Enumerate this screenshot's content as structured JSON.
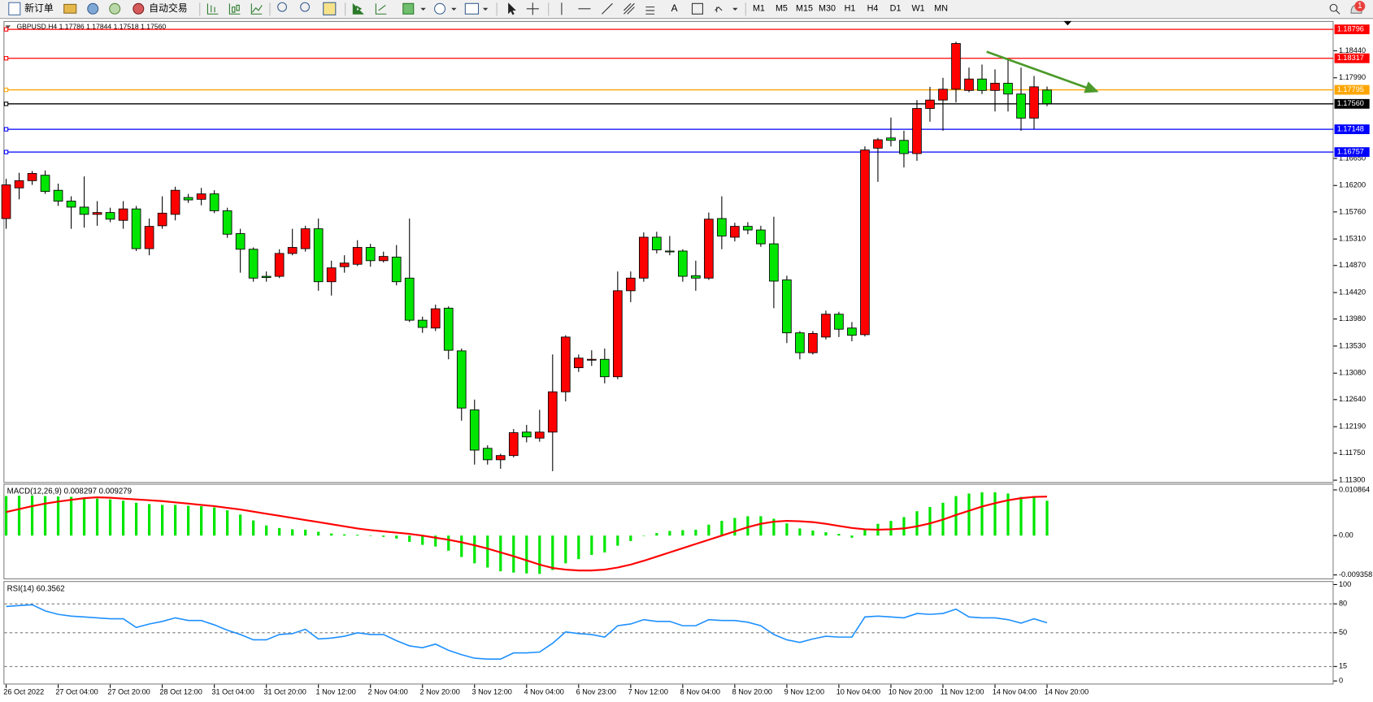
{
  "toolbar": {
    "new_order": "新订单",
    "auto_trading": "自动交易",
    "text_tool": "A",
    "timeframes": [
      "M1",
      "M5",
      "M15",
      "M30",
      "H1",
      "H4",
      "D1",
      "W1",
      "MN"
    ],
    "notifications": 1
  },
  "chart_data": [
    {
      "type": "candlestick",
      "title": "GBPUSD,H4  1.17786 1.17844 1.17518 1.17560",
      "categories": [
        "26 Oct 2022",
        null,
        null,
        null,
        "27 Oct 04:00",
        null,
        null,
        null,
        "27 Oct 20:00",
        null,
        null,
        null,
        "28 Oct 12:00",
        null,
        null,
        null,
        "31 Oct 04:00",
        null,
        null,
        null,
        "31 Oct 20:00",
        null,
        null,
        null,
        "1 Nov 12:00",
        null,
        null,
        null,
        "2 Nov 04:00",
        null,
        null,
        null,
        "2 Nov 20:00",
        null,
        null,
        null,
        "3 Nov 12:00",
        null,
        null,
        null,
        "4 Nov 04:00",
        null,
        null,
        null,
        "6 Nov 23:00",
        null,
        null,
        null,
        "7 Nov 12:00",
        null,
        null,
        null,
        "8 Nov 04:00",
        null,
        null,
        null,
        "8 Nov 20:00",
        null,
        null,
        null,
        "9 Nov 12:00",
        null,
        null,
        null,
        "10 Nov 04:00",
        null,
        null,
        null,
        "10 Nov 20:00",
        null,
        null,
        null,
        "11 Nov 12:00",
        null,
        null,
        null,
        "14 Nov 04:00",
        null,
        null,
        null,
        "14 Nov 20:00"
      ],
      "open": [
        1.1565,
        1.1616,
        1.1628,
        1.1637,
        1.1612,
        1.1594,
        1.1584,
        1.1572,
        1.1575,
        1.1562,
        1.1581,
        1.1515,
        1.1553,
        1.1572,
        1.16,
        1.1597,
        1.1606,
        1.1578,
        1.154,
        1.1514,
        1.1469,
        1.1469,
        1.1507,
        1.1515,
        1.1548,
        1.146,
        1.1485,
        1.1489,
        1.1517,
        1.1495,
        1.1501,
        1.1466,
        1.1396,
        1.1383,
        1.1416,
        1.1345,
        1.1247,
        1.1183,
        1.1164,
        1.1171,
        1.121,
        1.12,
        1.121,
        1.1277,
        1.1317,
        1.133,
        1.1331,
        1.1302,
        1.1445,
        1.1466,
        1.1534,
        1.1511,
        1.1511,
        1.147,
        1.1466,
        1.1565,
        1.1534,
        1.1552,
        1.1546,
        1.1523,
        1.1463,
        1.1375,
        1.1342,
        1.1368,
        1.1406,
        1.1383,
        1.1372,
        1.1682,
        1.1699,
        1.1695,
        1.1673,
        1.1748,
        1.1762,
        1.178,
        1.1778,
        1.1797,
        1.1778,
        1.179,
        1.1772,
        1.1732,
        1.17786
      ],
      "high": [
        1.1631,
        1.1641,
        1.1644,
        1.1645,
        1.1623,
        1.1602,
        1.1635,
        1.1594,
        1.1583,
        1.1594,
        1.1586,
        1.1565,
        1.1602,
        1.1618,
        1.1606,
        1.1616,
        1.1612,
        1.1583,
        1.1548,
        1.1517,
        1.1477,
        1.1514,
        1.1548,
        1.1553,
        1.1565,
        1.1495,
        1.1504,
        1.1529,
        1.1523,
        1.151,
        1.1521,
        1.1565,
        1.1402,
        1.1422,
        1.1419,
        1.1349,
        1.1264,
        1.1188,
        1.1174,
        1.1215,
        1.1222,
        1.1247,
        1.1339,
        1.1371,
        1.1339,
        1.1346,
        1.1349,
        1.1477,
        1.1477,
        1.1542,
        1.1543,
        1.1536,
        1.1514,
        1.1495,
        1.1575,
        1.1602,
        1.1558,
        1.1559,
        1.1553,
        1.1568,
        1.147,
        1.1378,
        1.1378,
        1.1412,
        1.141,
        1.1393,
        1.1685,
        1.1699,
        1.1733,
        1.1711,
        1.1762,
        1.1784,
        1.1799,
        1.1859,
        1.1816,
        1.1821,
        1.1813,
        1.1831,
        1.1816,
        1.1802,
        1.17844
      ],
      "low": [
        1.1548,
        1.1597,
        1.1621,
        1.1606,
        1.1586,
        1.1548,
        1.155,
        1.1553,
        1.1559,
        1.1548,
        1.1511,
        1.1504,
        1.1548,
        1.1562,
        1.1591,
        1.1587,
        1.1574,
        1.1533,
        1.1475,
        1.146,
        1.146,
        1.1466,
        1.1504,
        1.151,
        1.1445,
        1.1437,
        1.1475,
        1.1486,
        1.1485,
        1.1492,
        1.1454,
        1.1393,
        1.1375,
        1.1378,
        1.1331,
        1.1229,
        1.1156,
        1.1156,
        1.1149,
        1.1168,
        1.1193,
        1.1194,
        1.1145,
        1.1261,
        1.131,
        1.132,
        1.1291,
        1.1298,
        1.1426,
        1.146,
        1.1507,
        1.1504,
        1.146,
        1.1445,
        1.1463,
        1.1514,
        1.1527,
        1.1539,
        1.1518,
        1.1416,
        1.1358,
        1.1331,
        1.1339,
        1.1364,
        1.1368,
        1.1361,
        1.1369,
        1.1626,
        1.1685,
        1.165,
        1.1661,
        1.1726,
        1.1711,
        1.1758,
        1.1775,
        1.1772,
        1.1743,
        1.1743,
        1.1711,
        1.1714,
        1.17518
      ],
      "close": [
        1.1621,
        1.1628,
        1.164,
        1.161,
        1.1594,
        1.1584,
        1.1572,
        1.1575,
        1.1564,
        1.1581,
        1.1515,
        1.1552,
        1.1574,
        1.1612,
        1.1596,
        1.1606,
        1.1578,
        1.1539,
        1.1514,
        1.1466,
        1.1467,
        1.1507,
        1.1517,
        1.1548,
        1.146,
        1.1483,
        1.1491,
        1.1517,
        1.1495,
        1.1502,
        1.146,
        1.1396,
        1.1384,
        1.1415,
        1.1346,
        1.125,
        1.118,
        1.1164,
        1.1171,
        1.1209,
        1.1202,
        1.121,
        1.1277,
        1.1368,
        1.1333,
        1.1331,
        1.1302,
        1.1445,
        1.1466,
        1.1534,
        1.1513,
        1.151,
        1.1469,
        1.1466,
        1.1564,
        1.1536,
        1.1552,
        1.1546,
        1.1523,
        1.1461,
        1.1375,
        1.1342,
        1.1374,
        1.1406,
        1.1381,
        1.1371,
        1.1679,
        1.1696,
        1.1695,
        1.1673,
        1.1748,
        1.1762,
        1.178,
        1.1856,
        1.1797,
        1.1778,
        1.179,
        1.1772,
        1.1732,
        1.1784,
        1.1756
      ],
      "up_color": "#ff0000",
      "down_color": "#00e600",
      "ylim": [
        1.1127,
        1.1889
      ],
      "yticks": [
        {
          "value": 1.1844,
          "label": "1.18440"
        },
        {
          "value": 1.1799,
          "label": "1.17990"
        },
        {
          "value": 1.1665,
          "label": "1.16650"
        },
        {
          "value": 1.162,
          "label": "1.16200"
        },
        {
          "value": 1.1576,
          "label": "1.15760"
        },
        {
          "value": 1.1531,
          "label": "1.15310"
        },
        {
          "value": 1.1487,
          "label": "1.14870"
        },
        {
          "value": 1.1442,
          "label": "1.14420"
        },
        {
          "value": 1.1398,
          "label": "1.13980"
        },
        {
          "value": 1.1353,
          "label": "1.13530"
        },
        {
          "value": 1.1308,
          "label": "1.13080"
        },
        {
          "value": 1.1264,
          "label": "1.12640"
        },
        {
          "value": 1.1219,
          "label": "1.12190"
        },
        {
          "value": 1.1175,
          "label": "1.11750"
        },
        {
          "value": 1.113,
          "label": "1.11300"
        }
      ],
      "levels": [
        {
          "value": 1.18796,
          "color": "#ff0000"
        },
        {
          "value": 1.18317,
          "color": "#ff0000"
        },
        {
          "value": 1.17795,
          "color": "#ffa500"
        },
        {
          "value": 1.1756,
          "label": "1.17560",
          "color": "#000000"
        },
        {
          "value": 1.17148,
          "color": "#0000ff"
        },
        {
          "value": 1.16757,
          "color": "#0000ff"
        }
      ]
    },
    {
      "type": "macd",
      "title": "MACD(12,26,9) 0.008297 0.009279",
      "series": [
        {
          "style": "histogram",
          "color": "#00e600",
          "values": [
            0.0094,
            0.0095,
            0.0095,
            0.0094,
            0.0093,
            0.0092,
            0.009,
            0.0088,
            0.0086,
            0.0083,
            0.0078,
            0.0075,
            0.0073,
            0.0073,
            0.0071,
            0.007,
            0.0067,
            0.006,
            0.005,
            0.0036,
            0.0024,
            0.0018,
            0.0015,
            0.0014,
            0.0009,
            0.0005,
            0.0003,
            0.0002,
            -0.0001,
            -0.0003,
            -0.0007,
            -0.0015,
            -0.0022,
            -0.0026,
            -0.0036,
            -0.0051,
            -0.0066,
            -0.0076,
            -0.0085,
            -0.0088,
            -0.009,
            -0.0091,
            -0.0082,
            -0.0066,
            -0.0056,
            -0.0046,
            -0.004,
            -0.0024,
            -0.0013,
            -0.0001,
            0.0006,
            0.0011,
            0.0013,
            0.0014,
            0.0026,
            0.0035,
            0.0042,
            0.0046,
            0.0046,
            0.004,
            0.0029,
            0.0017,
            0.0012,
            0.0008,
            0.0004,
            -0.0005,
            0.0015,
            0.0028,
            0.0035,
            0.0044,
            0.0058,
            0.0068,
            0.0078,
            0.0094,
            0.01,
            0.0103,
            0.0103,
            0.01,
            0.0092,
            0.0092,
            0.008297
          ]
        },
        {
          "style": "line",
          "color": "#ff0000",
          "values": [
            0.0056,
            0.0063,
            0.007,
            0.0076,
            0.0081,
            0.0085,
            0.0089,
            0.0091,
            0.009,
            0.0088,
            0.0086,
            0.0084,
            0.0082,
            0.0079,
            0.0076,
            0.0073,
            0.007,
            0.0066,
            0.0062,
            0.0057,
            0.0052,
            0.0047,
            0.0042,
            0.0037,
            0.0032,
            0.0027,
            0.0022,
            0.0017,
            0.0013,
            0.001,
            0.0007,
            0.0004,
            0.0,
            -0.0005,
            -0.001,
            -0.0016,
            -0.0023,
            -0.0031,
            -0.004,
            -0.0049,
            -0.0059,
            -0.0069,
            -0.0077,
            -0.0081,
            -0.0083,
            -0.0083,
            -0.0081,
            -0.0076,
            -0.0069,
            -0.006,
            -0.005,
            -0.004,
            -0.003,
            -0.002,
            -0.001,
            0.0,
            0.001,
            0.002,
            0.0028,
            0.0033,
            0.0035,
            0.0034,
            0.0032,
            0.0028,
            0.0023,
            0.0018,
            0.0015,
            0.0014,
            0.0015,
            0.0017,
            0.0022,
            0.0029,
            0.0038,
            0.0049,
            0.0059,
            0.0069,
            0.0077,
            0.0084,
            0.0089,
            0.0092,
            0.009279
          ]
        }
      ],
      "ylim": [
        -0.009358,
        0.010864
      ],
      "yticks": [
        0.010864,
        {
          "value": 0,
          "label": "0.00"
        },
        -0.009358
      ]
    },
    {
      "type": "line",
      "title": "RSI(14) 60.3562",
      "color": "#1e90ff",
      "values": [
        77.3,
        78.2,
        79.1,
        72.7,
        69.1,
        67.3,
        66.4,
        65.5,
        64.5,
        64.5,
        55.5,
        59.1,
        61.8,
        65.5,
        62.7,
        62.7,
        58.2,
        52.7,
        48.2,
        42.7,
        42.7,
        48.2,
        49.1,
        53.6,
        43.6,
        44.5,
        46.4,
        50.0,
        48.2,
        48.2,
        41.8,
        36.4,
        34.5,
        38.2,
        31.8,
        27.3,
        23.6,
        22.7,
        22.7,
        29.1,
        29.1,
        30.0,
        39.1,
        50.9,
        49.1,
        48.2,
        45.5,
        57.3,
        59.1,
        63.6,
        61.8,
        61.8,
        57.3,
        57.3,
        63.6,
        62.7,
        62.7,
        60.9,
        57.3,
        48.2,
        42.7,
        40.0,
        43.6,
        46.4,
        45.5,
        45.5,
        66.4,
        67.3,
        66.4,
        65.5,
        70.0,
        69.1,
        70.0,
        74.5,
        66.4,
        65.5,
        65.5,
        63.6,
        60.0,
        64.5,
        60.3562
      ],
      "ylim": [
        0,
        100
      ],
      "yticks": [
        100,
        80,
        50,
        15,
        0
      ],
      "level_lines": [
        80,
        50,
        15
      ]
    }
  ]
}
